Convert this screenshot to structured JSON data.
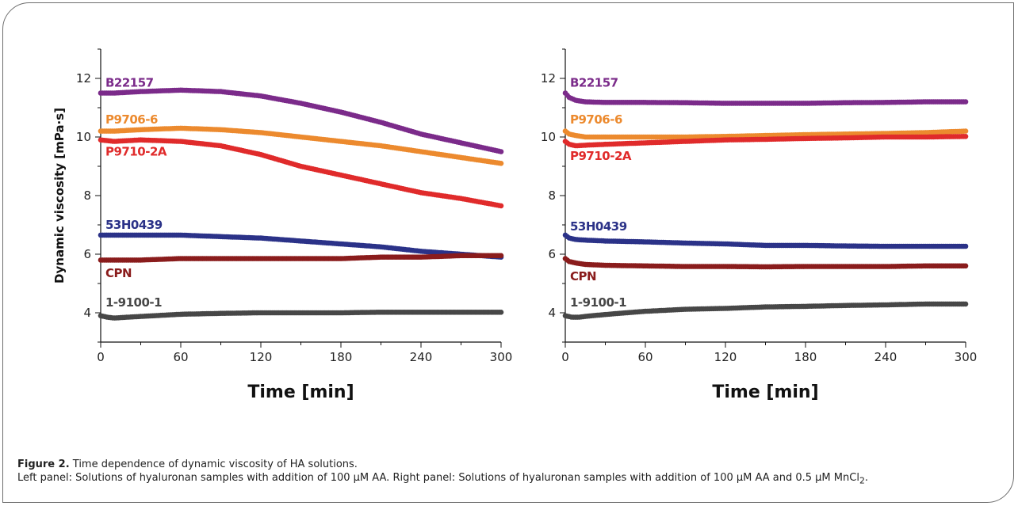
{
  "caption": {
    "figure_number": "Figure 2.",
    "title": "Time dependence of dynamic viscosity of HA solutions.",
    "body_prefix": "Left panel: Solutions of hyaluronan samples with addition of 100 µM AA. Right panel: Solutions of hyaluronan samples with addition of 100 µM AA and 0.5 µM MnCl",
    "body_subscript": "2",
    "body_suffix": "."
  },
  "colors": {
    "B22157": "#7b2b8a",
    "P9706-6": "#ec8a2e",
    "P9710-2A": "#e02b2b",
    "53H0439": "#2b3288",
    "CPN": "#8a1c1c",
    "1-9100-1": "#474747"
  },
  "chart_data": [
    {
      "type": "scatter",
      "title": "",
      "xlabel": "Time [min]",
      "ylabel": "Dynamic viscosity [mPa·s]",
      "xlim": [
        0,
        300
      ],
      "ylim": [
        3,
        13
      ],
      "xticks": [
        0,
        60,
        120,
        180,
        240,
        300
      ],
      "yticks": [
        4,
        6,
        8,
        10,
        12
      ],
      "grid": false,
      "legend": "inline labels at left of each series",
      "series": [
        {
          "name": "B22157",
          "x": [
            0,
            10,
            30,
            60,
            90,
            120,
            150,
            180,
            210,
            240,
            270,
            300
          ],
          "y": [
            11.5,
            11.5,
            11.55,
            11.6,
            11.55,
            11.4,
            11.15,
            10.85,
            10.5,
            10.1,
            9.8,
            9.5
          ]
        },
        {
          "name": "P9706-6",
          "x": [
            0,
            10,
            30,
            60,
            90,
            120,
            150,
            180,
            210,
            240,
            270,
            300
          ],
          "y": [
            10.2,
            10.2,
            10.25,
            10.3,
            10.25,
            10.15,
            10.0,
            9.85,
            9.7,
            9.5,
            9.3,
            9.1
          ]
        },
        {
          "name": "P9710-2A",
          "x": [
            0,
            10,
            30,
            60,
            90,
            120,
            150,
            180,
            210,
            240,
            270,
            300
          ],
          "y": [
            9.9,
            9.85,
            9.9,
            9.85,
            9.7,
            9.4,
            9.0,
            8.7,
            8.4,
            8.1,
            7.9,
            7.65
          ]
        },
        {
          "name": "53H0439",
          "x": [
            0,
            30,
            60,
            90,
            120,
            150,
            180,
            210,
            240,
            270,
            300
          ],
          "y": [
            6.65,
            6.65,
            6.65,
            6.6,
            6.55,
            6.45,
            6.35,
            6.25,
            6.1,
            6.0,
            5.9
          ]
        },
        {
          "name": "CPN",
          "x": [
            0,
            30,
            60,
            90,
            120,
            150,
            180,
            210,
            240,
            270,
            300
          ],
          "y": [
            5.8,
            5.8,
            5.85,
            5.85,
            5.85,
            5.85,
            5.85,
            5.9,
            5.9,
            5.95,
            5.95
          ]
        },
        {
          "name": "1-9100-1",
          "x": [
            0,
            5,
            10,
            20,
            40,
            60,
            90,
            120,
            150,
            180,
            210,
            240,
            270,
            300
          ],
          "y": [
            3.9,
            3.85,
            3.82,
            3.85,
            3.9,
            3.95,
            3.98,
            4.0,
            4.0,
            4.0,
            4.02,
            4.02,
            4.02,
            4.02
          ]
        }
      ]
    },
    {
      "type": "scatter",
      "title": "",
      "xlabel": "Time [min]",
      "ylabel": "",
      "xlim": [
        0,
        300
      ],
      "ylim": [
        3,
        13
      ],
      "xticks": [
        0,
        60,
        120,
        180,
        240,
        300
      ],
      "yticks": [
        4,
        6,
        8,
        10,
        12
      ],
      "grid": false,
      "legend": "inline labels at left of each series",
      "series": [
        {
          "name": "B22157",
          "x": [
            0,
            3,
            8,
            15,
            30,
            60,
            90,
            120,
            150,
            180,
            210,
            240,
            270,
            300
          ],
          "y": [
            11.5,
            11.35,
            11.25,
            11.2,
            11.18,
            11.18,
            11.17,
            11.15,
            11.15,
            11.15,
            11.17,
            11.18,
            11.2,
            11.2
          ]
        },
        {
          "name": "P9706-6",
          "x": [
            0,
            3,
            8,
            15,
            30,
            60,
            90,
            120,
            150,
            180,
            210,
            240,
            270,
            300
          ],
          "y": [
            10.2,
            10.1,
            10.05,
            10.0,
            10.0,
            10.0,
            10.0,
            10.02,
            10.05,
            10.08,
            10.1,
            10.12,
            10.15,
            10.2
          ]
        },
        {
          "name": "P9710-2A",
          "x": [
            0,
            3,
            8,
            15,
            30,
            60,
            90,
            120,
            150,
            180,
            210,
            240,
            270,
            300
          ],
          "y": [
            9.85,
            9.75,
            9.7,
            9.72,
            9.75,
            9.8,
            9.85,
            9.9,
            9.92,
            9.95,
            9.97,
            10.0,
            10.0,
            10.02
          ]
        },
        {
          "name": "53H0439",
          "x": [
            0,
            3,
            8,
            15,
            30,
            60,
            90,
            120,
            150,
            180,
            210,
            240,
            270,
            300
          ],
          "y": [
            6.65,
            6.55,
            6.5,
            6.48,
            6.45,
            6.42,
            6.38,
            6.35,
            6.3,
            6.3,
            6.28,
            6.27,
            6.27,
            6.27
          ]
        },
        {
          "name": "CPN",
          "x": [
            0,
            3,
            8,
            15,
            30,
            60,
            90,
            120,
            150,
            180,
            210,
            240,
            270,
            300
          ],
          "y": [
            5.85,
            5.75,
            5.7,
            5.65,
            5.62,
            5.6,
            5.58,
            5.58,
            5.57,
            5.58,
            5.58,
            5.58,
            5.6,
            5.6
          ]
        },
        {
          "name": "1-9100-1",
          "x": [
            0,
            5,
            10,
            20,
            40,
            60,
            90,
            120,
            150,
            180,
            210,
            240,
            270,
            300
          ],
          "y": [
            3.9,
            3.85,
            3.85,
            3.9,
            3.98,
            4.05,
            4.12,
            4.15,
            4.2,
            4.22,
            4.25,
            4.27,
            4.3,
            4.3
          ]
        }
      ]
    }
  ]
}
